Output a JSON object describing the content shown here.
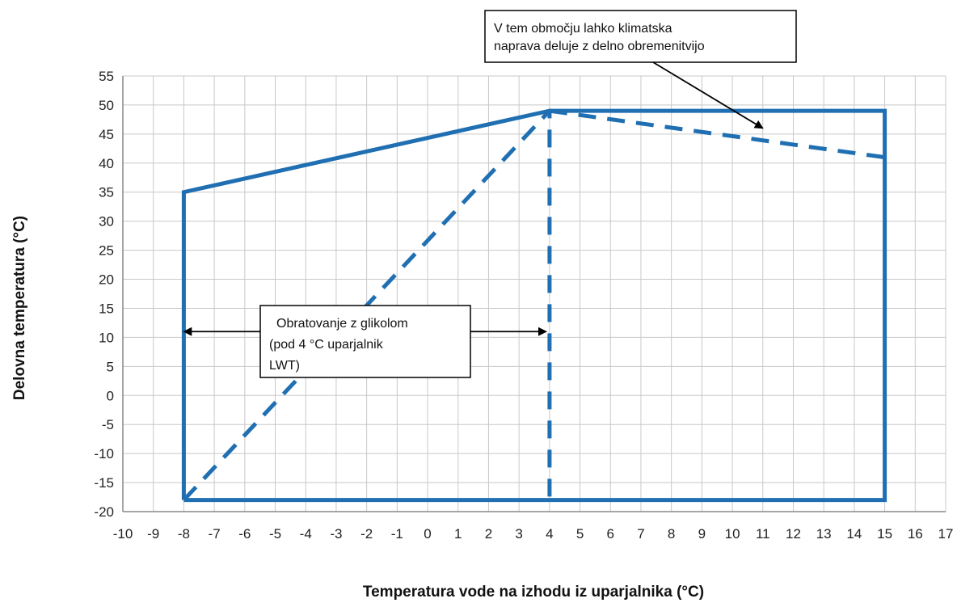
{
  "chart_data": {
    "type": "line",
    "xlabel": "Temperatura vode na izhodu iz uparjalnika (°C)",
    "ylabel": "Delovna temperatura (°C)",
    "xlim": [
      -10,
      17
    ],
    "ylim": [
      -20,
      55
    ],
    "x_ticks": [
      "-10",
      "-9",
      "-8",
      "-7",
      "-6",
      "-5",
      "-4",
      "-3",
      "-2",
      "-1",
      "0",
      "1",
      "2",
      "3",
      "4",
      "5",
      "6",
      "7",
      "8",
      "9",
      "10",
      "11",
      "12",
      "13",
      "14",
      "15",
      "16",
      "17"
    ],
    "y_ticks": [
      "55",
      "50",
      "45",
      "40",
      "35",
      "30",
      "25",
      "20",
      "15",
      "10",
      "5",
      "0",
      "-5",
      "-10",
      "-15",
      "-20"
    ],
    "grid": true,
    "color": "#1f6fb2",
    "series": [
      {
        "style": "solid",
        "x": [
          -8,
          -8,
          4,
          15,
          15,
          -8
        ],
        "y": [
          -18,
          35,
          49,
          49,
          -18,
          -18
        ]
      },
      {
        "style": "dashed",
        "x": [
          -8,
          4,
          4
        ],
        "y": [
          -18,
          49,
          -18
        ]
      },
      {
        "style": "dashed",
        "x": [
          4,
          15
        ],
        "y": [
          49,
          41
        ]
      }
    ],
    "annotations": [
      {
        "lines": [
          "V  tem  območju  lahko  klimatska",
          "naprava deluje z delno obremenitvijo"
        ],
        "arrow_to": {
          "x": 11,
          "y": 46
        }
      },
      {
        "lines": [
          "Obratovanje z glikolom",
          "(pod  4  °C  uparjalnik",
          "LWT)"
        ],
        "arrows_to": [
          {
            "x": -8,
            "y": 11
          },
          {
            "x": 4,
            "y": 11
          }
        ]
      }
    ]
  }
}
